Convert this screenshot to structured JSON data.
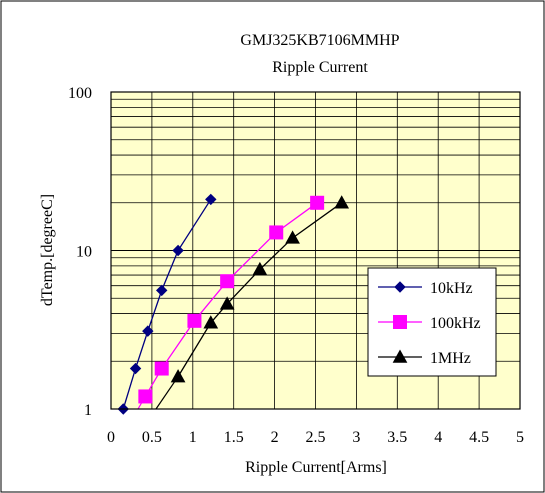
{
  "chart_data": {
    "type": "line",
    "title": "GMJ325KB7106MMHP",
    "subtitle": "Ripple Current",
    "xlabel": "Ripple Current[Arms]",
    "ylabel": "dTemp.[degreeC]",
    "xlim": [
      0,
      5
    ],
    "ylim": [
      1,
      100
    ],
    "yscale": "log",
    "grid": true,
    "legend_position": "right",
    "plot_background": "#FFFFCC",
    "x_ticks": [
      "0",
      "0.5",
      "1",
      "1.5",
      "2",
      "2.5",
      "3",
      "3.5",
      "4",
      "4.5",
      "5"
    ],
    "y_ticks": [
      "1",
      "10",
      "100"
    ],
    "series": [
      {
        "name": "10kHz",
        "color": "#000080",
        "marker": "diamond",
        "x": [
          0.15,
          0.3,
          0.45,
          0.62,
          0.82,
          1.22
        ],
        "y": [
          1.0,
          1.8,
          3.1,
          5.6,
          10.0,
          21.0
        ]
      },
      {
        "name": "100kHz",
        "color": "#FF00FF",
        "marker": "square",
        "x": [
          0.42,
          0.62,
          1.02,
          1.42,
          2.02,
          2.52
        ],
        "y": [
          1.2,
          1.8,
          3.6,
          6.4,
          13.0,
          20.0
        ]
      },
      {
        "name": "1MHz",
        "color": "#000000",
        "marker": "triangle",
        "x": [
          0.82,
          1.22,
          1.42,
          1.82,
          2.22,
          2.82
        ],
        "y": [
          1.6,
          3.5,
          4.6,
          7.6,
          12.0,
          20.0
        ]
      }
    ],
    "fit_lines_start": [
      {
        "x": 0.15,
        "y": 1.0
      },
      {
        "x": 0.33,
        "y": 1.0
      },
      {
        "x": 0.55,
        "y": 1.0
      }
    ]
  }
}
